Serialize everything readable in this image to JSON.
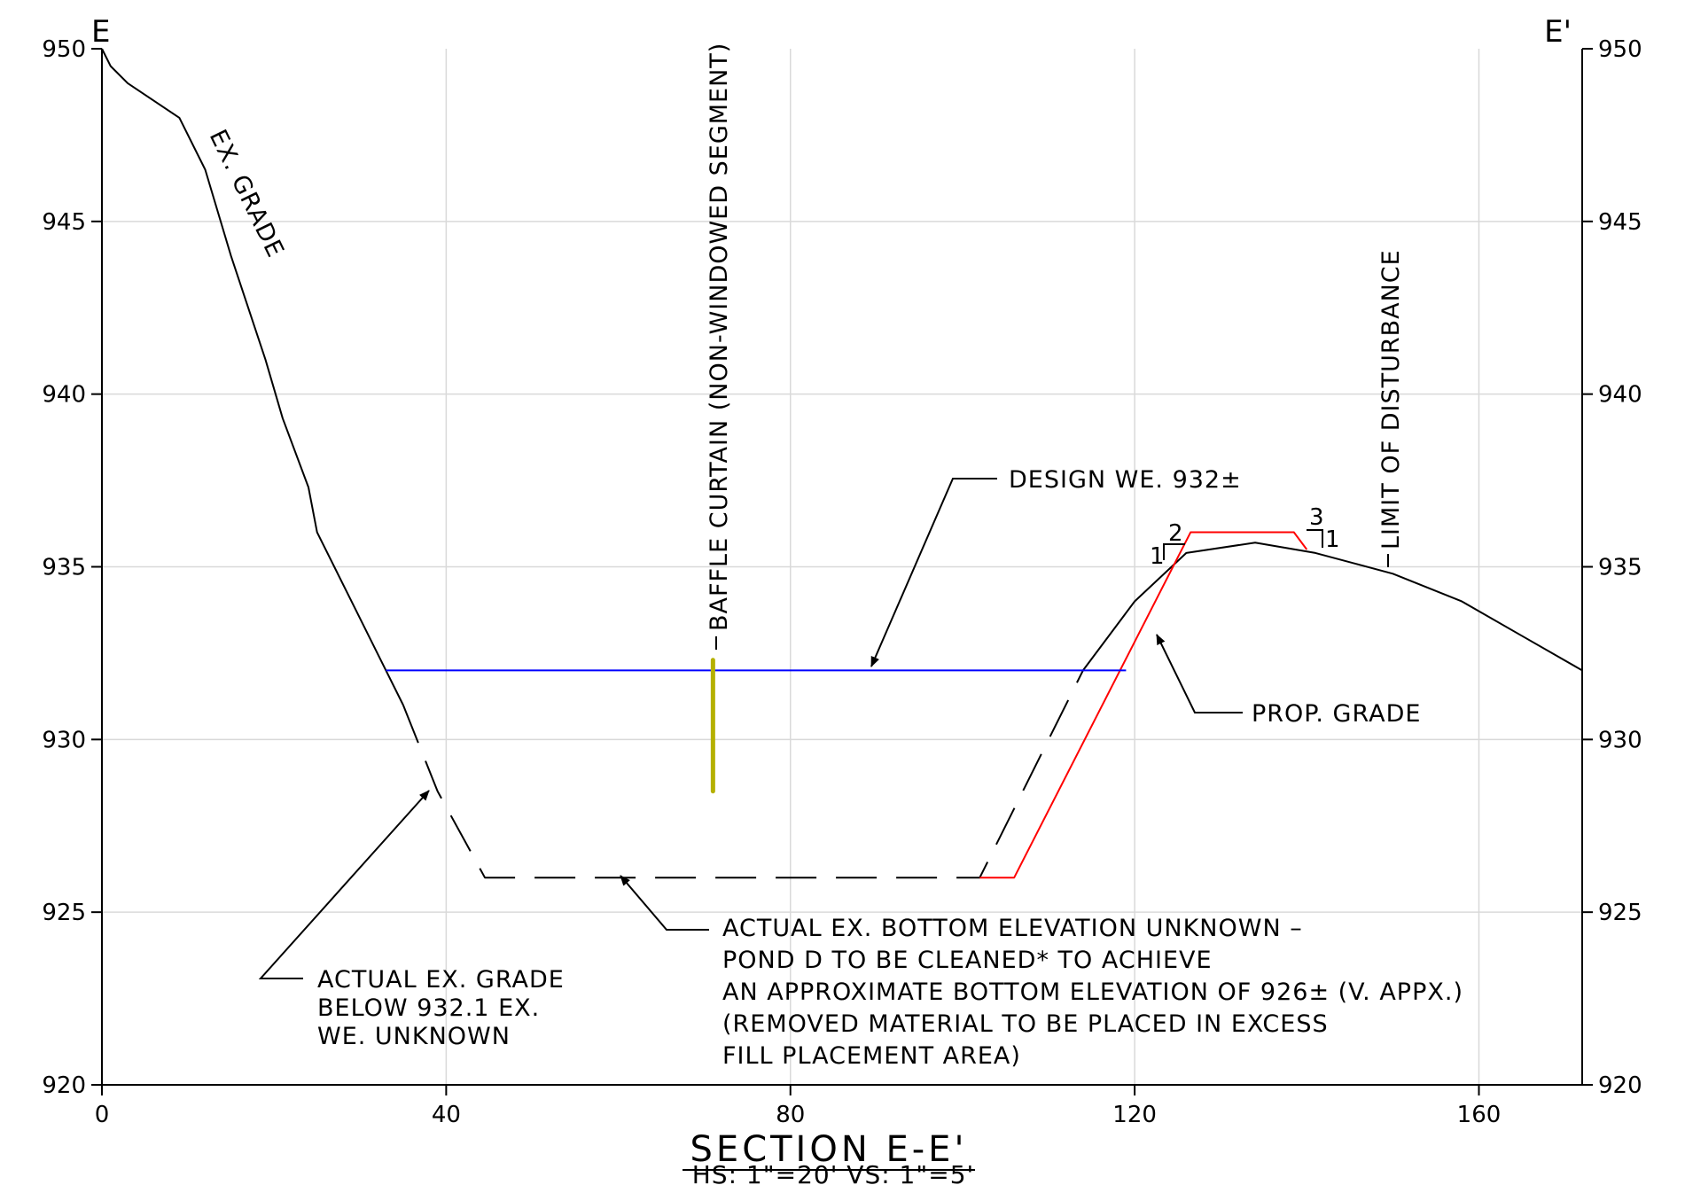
{
  "chart_data": {
    "type": "line",
    "title": "SECTION E-E'",
    "subtitle": "HS:   1\"=20'  VS:   1\"=5'",
    "section_start_label": "E",
    "section_end_label": "E'",
    "xlabel": "",
    "ylabel": "",
    "xlim": [
      0,
      172
    ],
    "ylim": [
      920,
      950
    ],
    "x_ticks": [
      0,
      40,
      80,
      120,
      160
    ],
    "y_ticks": [
      920,
      925,
      930,
      935,
      940,
      945,
      950
    ],
    "grid": true,
    "colors": {
      "existing_grade": "#000000",
      "proposed_grade": "#ff0000",
      "water_elevation": "#0000ff",
      "baffle_curtain": "#b5b000",
      "grid": "#d9d9d9"
    },
    "series": [
      {
        "label": "EX. GRADE",
        "style": "solid",
        "points": [
          [
            0,
            950
          ],
          [
            1,
            949.5
          ],
          [
            3,
            949
          ],
          [
            9,
            948
          ],
          [
            12,
            946.5
          ],
          [
            15,
            944
          ],
          [
            19,
            941
          ],
          [
            21,
            939.3
          ],
          [
            24,
            937.3
          ],
          [
            25,
            936
          ],
          [
            27,
            935
          ],
          [
            29,
            934
          ],
          [
            33,
            932
          ],
          [
            35,
            931
          ]
        ]
      },
      {
        "label": "",
        "style": "dashed",
        "points": [
          [
            35,
            931
          ],
          [
            39,
            928.5
          ],
          [
            44.5,
            926
          ],
          [
            102,
            926
          ],
          [
            106,
            928
          ],
          [
            111,
            930.5
          ],
          [
            114,
            932
          ]
        ]
      },
      {
        "label": "",
        "style": "solid",
        "points": [
          [
            114,
            932
          ],
          [
            120,
            934
          ],
          [
            126,
            935.4
          ],
          [
            134,
            935.7
          ],
          [
            141,
            935.4
          ],
          [
            150,
            934.8
          ],
          [
            158,
            934
          ],
          [
            165,
            933
          ],
          [
            172,
            932
          ]
        ]
      },
      {
        "label": "PROP. GRADE",
        "style": "solid",
        "points": [
          [
            102,
            926
          ],
          [
            106,
            926
          ],
          [
            126.5,
            936
          ],
          [
            138.5,
            936
          ],
          [
            140,
            935.5
          ]
        ]
      },
      {
        "label": "DESIGN WE. 932±",
        "style": "solid",
        "points": [
          [
            33,
            932
          ],
          [
            119,
            932
          ]
        ]
      },
      {
        "label": "BAFFLE CURTAIN (NON-WINDOWED SEGMENT)",
        "style": "thick",
        "points": [
          [
            71,
            932.3
          ],
          [
            71,
            928.5
          ]
        ]
      }
    ],
    "annotations": {
      "ex_grade": "EX. GRADE",
      "baffle": "BAFFLE CURTAIN (NON-WINDOWED SEGMENT)",
      "design_we": "DESIGN WE. 932±",
      "prop_grade": "PROP. GRADE",
      "limit": "LIMIT OF DISTURBANCE",
      "slope_left_h": "2",
      "slope_left_v": "1",
      "slope_right_h": "3",
      "slope_right_v": "1",
      "actual_grade": [
        "ACTUAL EX. GRADE",
        "BELOW 932.1 EX.",
        "WE. UNKNOWN"
      ],
      "actual_bottom": [
        "ACTUAL EX. BOTTOM ELEVATION UNKNOWN –",
        "POND D TO BE CLEANED* TO ACHIEVE",
        "AN APPROXIMATE BOTTOM ELEVATION OF 926± (V. APPX.)",
        "(REMOVED MATERIAL TO BE PLACED IN EXCESS",
        "FILL PLACEMENT AREA)"
      ]
    }
  }
}
